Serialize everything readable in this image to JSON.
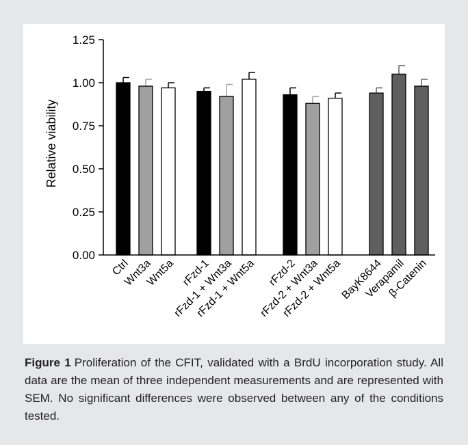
{
  "figure": {
    "label": "Figure 1",
    "caption": "Proliferation of the CFIT, validated with a BrdU incorporation study. All data are the mean of three independent measurements and are represented with SEM. No significant differences were observed between any of the conditions tested."
  },
  "chart_data": {
    "type": "bar",
    "title": "",
    "xlabel": "",
    "ylabel": "Relative viability",
    "ylim": [
      0,
      1.25
    ],
    "yticks": [
      "0.00",
      "0.25",
      "0.50",
      "0.75",
      "1.00",
      "1.25"
    ],
    "grid": false,
    "legend": "none",
    "colors": {
      "black": "#000000",
      "gray": "#a0a0a0",
      "white": "#ffffff",
      "dark_gray": "#5f5f5f"
    },
    "groups": [
      {
        "bars": [
          {
            "label": "Ctrl",
            "value": 1.0,
            "error": 0.03,
            "color": "black"
          },
          {
            "label": "Wnt3a",
            "value": 0.98,
            "error": 0.04,
            "color": "gray"
          },
          {
            "label": "Wnt5a",
            "value": 0.97,
            "error": 0.03,
            "color": "white"
          }
        ]
      },
      {
        "bars": [
          {
            "label": "rFzd-1",
            "value": 0.95,
            "error": 0.02,
            "color": "black"
          },
          {
            "label": "rFzd-1 + Wnt3a",
            "value": 0.92,
            "error": 0.07,
            "color": "gray"
          },
          {
            "label": "rFzd-1 + Wnt5a",
            "value": 1.02,
            "error": 0.04,
            "color": "white"
          }
        ]
      },
      {
        "bars": [
          {
            "label": "rFzd-2",
            "value": 0.93,
            "error": 0.04,
            "color": "black"
          },
          {
            "label": "rFzd-2 + Wnt3a",
            "value": 0.88,
            "error": 0.04,
            "color": "gray"
          },
          {
            "label": "rFzd-2 + Wnt5a",
            "value": 0.91,
            "error": 0.03,
            "color": "white"
          }
        ]
      },
      {
        "bars": [
          {
            "label": "BayK8644",
            "value": 0.94,
            "error": 0.03,
            "color": "dark_gray"
          },
          {
            "label": "Verapamil",
            "value": 1.05,
            "error": 0.05,
            "color": "dark_gray"
          },
          {
            "label": "β-Catenin",
            "value": 0.98,
            "error": 0.04,
            "color": "dark_gray"
          }
        ]
      }
    ]
  }
}
